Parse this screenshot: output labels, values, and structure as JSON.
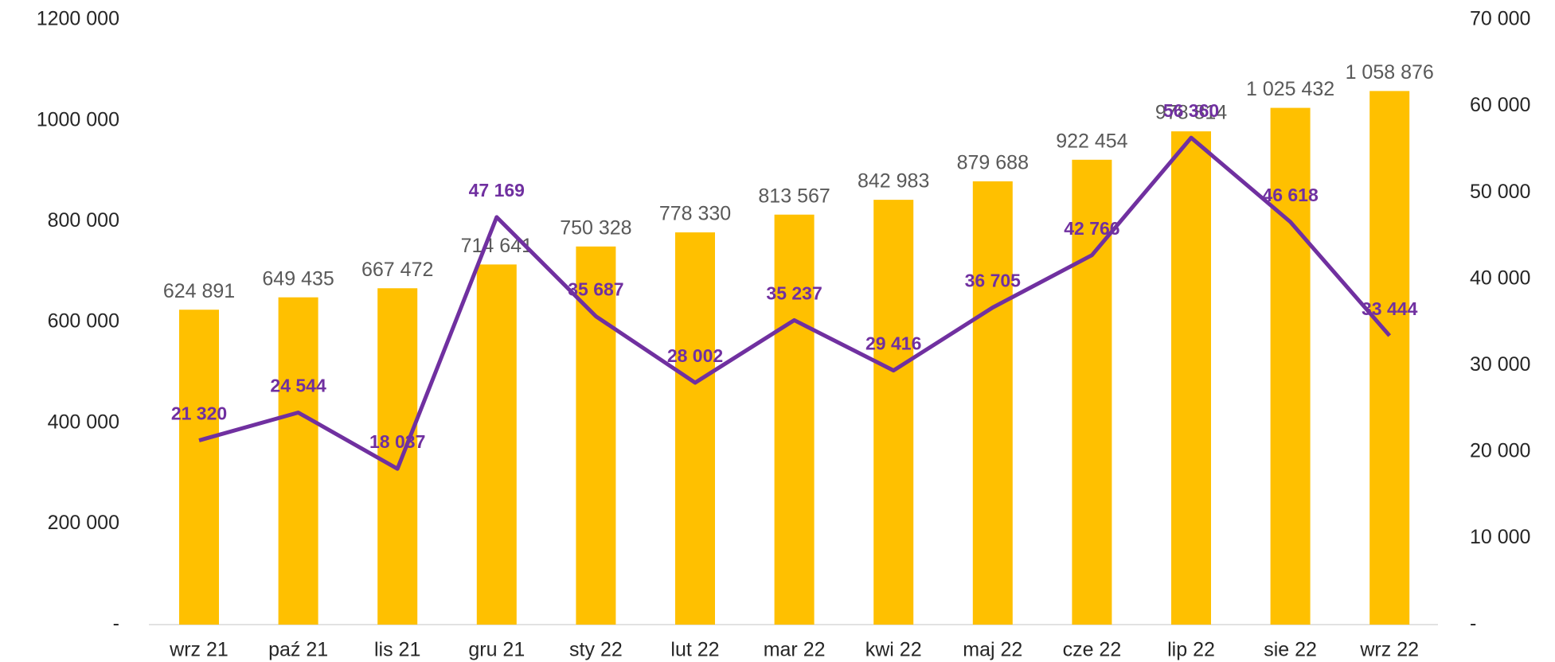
{
  "chart_data": {
    "type": "bar",
    "categories": [
      "wrz 21",
      "paź 21",
      "lis 21",
      "gru 21",
      "sty 22",
      "lut 22",
      "mar 22",
      "kwi 22",
      "maj 22",
      "cze 22",
      "lip 22",
      "sie 22",
      "wrz 22"
    ],
    "series": [
      {
        "type": "bar",
        "color": "#FFC000",
        "axis": "y",
        "values": [
          624891,
          649435,
          667472,
          714641,
          750328,
          778330,
          813567,
          842983,
          879688,
          922454,
          978814,
          1025432,
          1058876
        ],
        "value_labels": [
          "624 891",
          "649 435",
          "667 472",
          "714 641",
          "750 328",
          "778 330",
          "813 567",
          "842 983",
          "879 688",
          "922 454",
          "978 814",
          "1 025 432",
          "1 058 876"
        ]
      },
      {
        "type": "line",
        "color": "#7030A0",
        "axis": "y2",
        "values": [
          21320,
          24544,
          18037,
          47169,
          35687,
          28002,
          35237,
          29416,
          36705,
          42766,
          56360,
          46618,
          33444
        ],
        "value_labels": [
          "21 320",
          "24 544",
          "18 037",
          "47 169",
          "35 687",
          "28 002",
          "35 237",
          "29 416",
          "36 705",
          "42 766",
          "56 360",
          "46 618",
          "33 444"
        ]
      }
    ],
    "ylim": [
      0,
      1200000
    ],
    "yticks": [
      {
        "value": 0,
        "label": "-"
      },
      {
        "value": 200000,
        "label": "200 000"
      },
      {
        "value": 400000,
        "label": "400 000"
      },
      {
        "value": 600000,
        "label": "600 000"
      },
      {
        "value": 800000,
        "label": "800 000"
      },
      {
        "value": 1000000,
        "label": "1000 000"
      },
      {
        "value": 1200000,
        "label": "1200 000"
      }
    ],
    "y2lim": [
      0,
      70000
    ],
    "y2ticks": [
      {
        "value": 0,
        "label": "-"
      },
      {
        "value": 10000,
        "label": "10 000"
      },
      {
        "value": 20000,
        "label": "20 000"
      },
      {
        "value": 30000,
        "label": "30 000"
      },
      {
        "value": 40000,
        "label": "40 000"
      },
      {
        "value": 50000,
        "label": "50 000"
      },
      {
        "value": 60000,
        "label": "60 000"
      },
      {
        "value": 70000,
        "label": "70 000"
      }
    ],
    "grid": false
  }
}
